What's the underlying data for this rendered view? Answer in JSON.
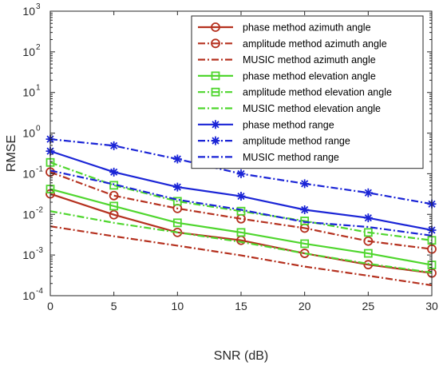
{
  "chart_data": {
    "type": "line",
    "xlabel": "SNR (dB)",
    "ylabel": "RMSE",
    "x": [
      0,
      5,
      10,
      15,
      20,
      25,
      30
    ],
    "xlim": [
      0,
      30
    ],
    "xticks": [
      "0",
      "5",
      "10",
      "15",
      "20",
      "25",
      "30"
    ],
    "ylim": [
      0.0001,
      1000
    ],
    "yscale": "log",
    "yticks": [
      {
        "value": 0.0001,
        "base": "10",
        "exp": "-4"
      },
      {
        "value": 0.001,
        "base": "10",
        "exp": "-3"
      },
      {
        "value": 0.01,
        "base": "10",
        "exp": "-2"
      },
      {
        "value": 0.1,
        "base": "10",
        "exp": "-1"
      },
      {
        "value": 1,
        "base": "10",
        "exp": "0"
      },
      {
        "value": 10,
        "base": "10",
        "exp": "1"
      },
      {
        "value": 100,
        "base": "10",
        "exp": "2"
      },
      {
        "value": 1000,
        "base": "10",
        "exp": "3"
      }
    ],
    "grid": false,
    "legend_position": "top-right",
    "series": [
      {
        "name": "phase method azimuth angle",
        "color": "#b5311f",
        "dash": "solid",
        "marker": "circle",
        "values": [
          0.032,
          0.0098,
          0.0036,
          0.0023,
          0.0011,
          0.00058,
          0.00036
        ]
      },
      {
        "name": "amplitude method azimuth angle",
        "color": "#b5311f",
        "dash": "dashdot",
        "marker": "circle",
        "values": [
          0.11,
          0.029,
          0.014,
          0.0078,
          0.0046,
          0.0022,
          0.0014
        ]
      },
      {
        "name": "MUSIC method azimuth angle",
        "color": "#b5311f",
        "dash": "dashdot",
        "marker": "none",
        "values": [
          0.0051,
          0.0029,
          0.0017,
          0.00098,
          0.00052,
          0.00031,
          0.00018
        ]
      },
      {
        "name": "phase method elevation angle",
        "color": "#4fd62e",
        "dash": "solid",
        "marker": "square",
        "values": [
          0.042,
          0.016,
          0.0062,
          0.0036,
          0.0019,
          0.0011,
          0.00057
        ]
      },
      {
        "name": "amplitude method elevation angle",
        "color": "#4fd62e",
        "dash": "dashdot",
        "marker": "square",
        "values": [
          0.19,
          0.052,
          0.021,
          0.012,
          0.0069,
          0.0036,
          0.0023
        ]
      },
      {
        "name": "MUSIC method elevation angle",
        "color": "#4fd62e",
        "dash": "dashdot",
        "marker": "none",
        "values": [
          0.012,
          0.0062,
          0.0036,
          0.0021,
          0.0011,
          0.00061,
          0.00037
        ]
      },
      {
        "name": "phase method range",
        "color": "#1a24d6",
        "dash": "solid",
        "marker": "asterisk",
        "values": [
          0.36,
          0.11,
          0.047,
          0.028,
          0.013,
          0.0082,
          0.0041
        ]
      },
      {
        "name": "amplitude method range",
        "color": "#1a24d6",
        "dash": "dashdot",
        "marker": "asterisk",
        "values": [
          0.71,
          0.49,
          0.23,
          0.1,
          0.057,
          0.034,
          0.018
        ]
      },
      {
        "name": "MUSIC method range",
        "color": "#1a24d6",
        "dash": "dashdot",
        "marker": "none",
        "values": [
          0.12,
          0.055,
          0.023,
          0.013,
          0.0065,
          0.0049,
          0.003
        ]
      }
    ]
  }
}
